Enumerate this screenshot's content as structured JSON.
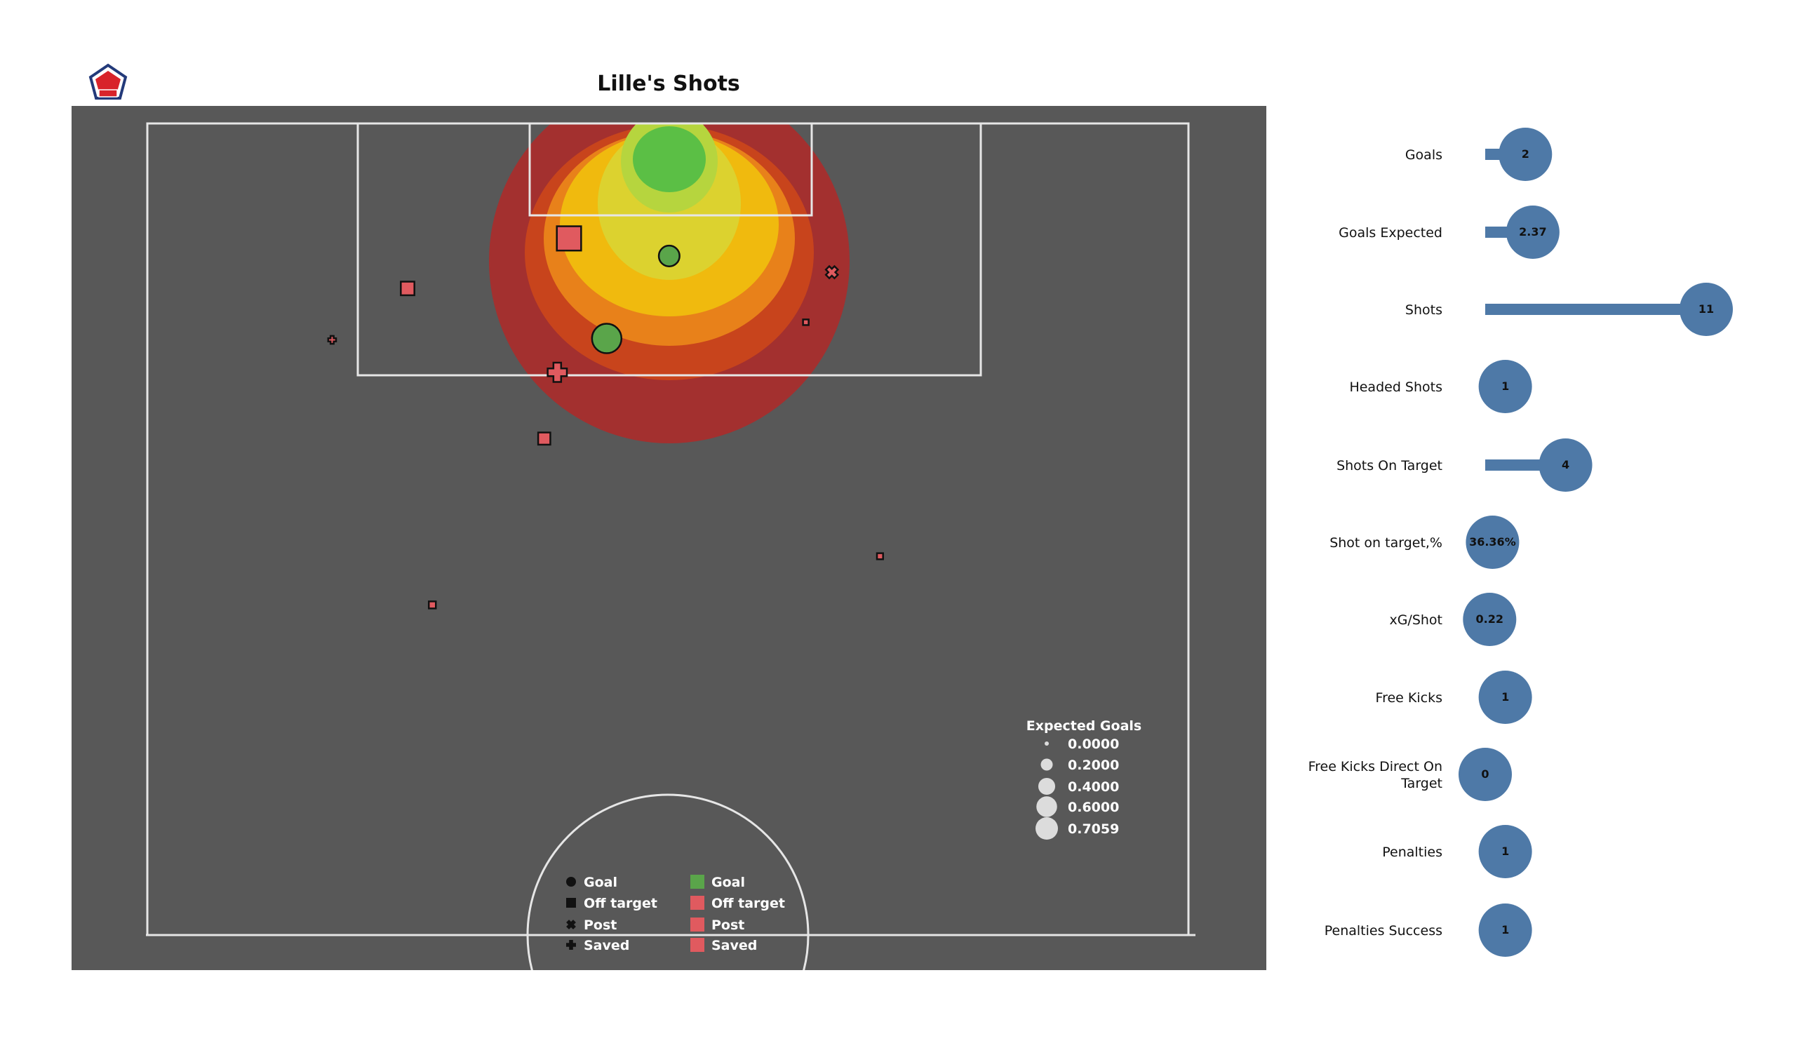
{
  "chart_data": [
    {
      "type": "scatter",
      "title": "Lille's Shots",
      "pitch": "half-pitch, attacking upward, x = distance along pitch (120 = goal line), y = across (0-80)",
      "heatmap": {
        "type": "kde-contour",
        "colors": [
          "#a3302f",
          "#c8441c",
          "#e8811a",
          "#f0ba0e",
          "#dcd22f",
          "#b6d53e",
          "#5bbf45"
        ]
      },
      "shots": [
        {
          "x": 111.5,
          "y": 32.4,
          "xg": 0.48,
          "outcome": "Off target"
        },
        {
          "x": 110.2,
          "y": 40.1,
          "xg": 0.35,
          "outcome": "Goal"
        },
        {
          "x": 109.0,
          "y": 52.6,
          "xg": 0.12,
          "outcome": "Post"
        },
        {
          "x": 107.8,
          "y": 20.0,
          "xg": 0.15,
          "outcome": "Off target"
        },
        {
          "x": 104.0,
          "y": 14.2,
          "xg": 0.05,
          "outcome": "Saved"
        },
        {
          "x": 104.1,
          "y": 35.3,
          "xg": 0.7059,
          "outcome": "Goal"
        },
        {
          "x": 105.3,
          "y": 50.6,
          "xg": 0.02,
          "outcome": "Off target"
        },
        {
          "x": 101.6,
          "y": 31.5,
          "xg": 0.3,
          "outcome": "Saved"
        },
        {
          "x": 96.7,
          "y": 30.5,
          "xg": 0.12,
          "outcome": "Off target"
        },
        {
          "x": 88.0,
          "y": 56.3,
          "xg": 0.03,
          "outcome": "Off target"
        },
        {
          "x": 84.4,
          "y": 21.9,
          "xg": 0.04,
          "outcome": "Off target"
        }
      ],
      "size_legend": {
        "title": "Expected Goals",
        "values": [
          "0.0000",
          "0.2000",
          "0.4000",
          "0.6000",
          "0.7059"
        ]
      },
      "shape_legend": [
        "Goal",
        "Off target",
        "Post",
        "Saved"
      ],
      "color_legend": [
        {
          "label": "Goal",
          "color": "#5aa54a"
        },
        {
          "label": "Off target",
          "color": "#e05a5f"
        },
        {
          "label": "Post",
          "color": "#e05a5f"
        },
        {
          "label": "Saved",
          "color": "#e05a5f"
        }
      ]
    },
    {
      "type": "bar",
      "orientation": "horizontal-lollipop",
      "color": "#4e79a7",
      "xlim": [
        0,
        11
      ],
      "categories": [
        "Goals",
        "Goals Expected",
        "Shots",
        "Headed Shots",
        "Shots On Target",
        "Shot on target,%",
        "xG/Shot",
        "Free Kicks",
        "Free Kicks Direct On Target",
        "Penalties",
        "Penalties Success"
      ],
      "values": [
        2,
        2.37,
        11,
        1,
        4,
        0.3636,
        0.22,
        1,
        0,
        1,
        1
      ],
      "labels": [
        "2",
        "2.37",
        "11",
        "1",
        "4",
        "36.36%",
        "0.22",
        "1",
        "0",
        "1",
        "1"
      ]
    }
  ],
  "header": {
    "title": "Lille's Shots",
    "logo": "LOSC"
  },
  "colors": {
    "pitch": "#585858",
    "lines": "#e6e6e6",
    "bar": "#4e79a7",
    "goal": "#5aa54a",
    "miss": "#e05a5f"
  }
}
